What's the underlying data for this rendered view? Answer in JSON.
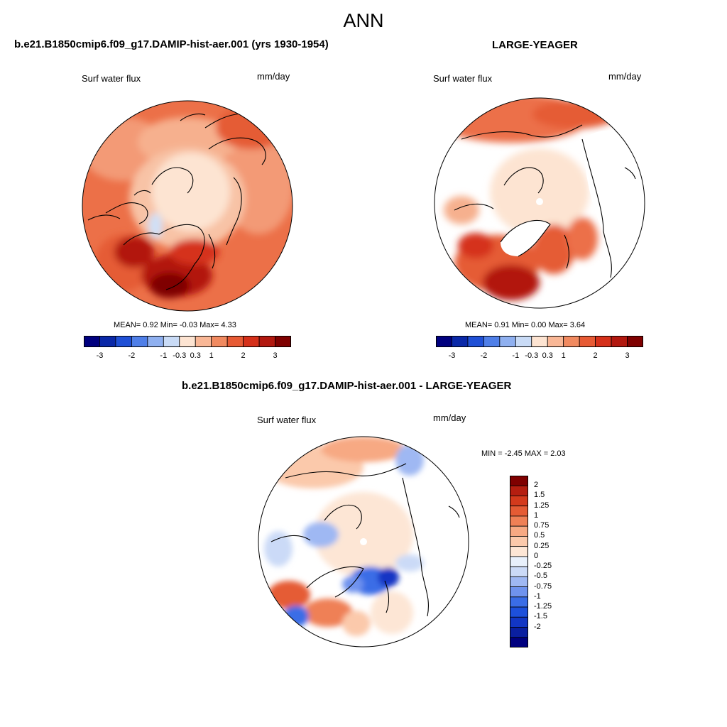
{
  "title": "ANN",
  "colors": {
    "abs_scale": [
      "#00007f",
      "#0a28a8",
      "#1f50d6",
      "#4f7fe8",
      "#8fb0f0",
      "#c9dbf6",
      "#fde4d2",
      "#f9b796",
      "#f18a60",
      "#e75a34",
      "#d5301a",
      "#b2180f",
      "#7f0000"
    ],
    "diff_scale": [
      "#00007f",
      "#0a1fa0",
      "#1236c4",
      "#1d50db",
      "#3a6de6",
      "#6f93ee",
      "#9fb8f3",
      "#cbdaf7",
      "#e8f0fb",
      "#fde6d5",
      "#fbc9ab",
      "#f7a983",
      "#ef8056",
      "#e55b34",
      "#d43a1c",
      "#b51e10",
      "#7f0000"
    ]
  },
  "chart_data": [
    {
      "type": "heatmap",
      "title": "b.e21.B1850cmip6.f09_g17.DAMIP-hist-aer.001 (yrs 1930-1954)",
      "variable": "Surf water flux",
      "units": "mm/day",
      "projection": "polar stereographic (north)",
      "stats": {
        "mean_label": "MEAN=",
        "mean": "0.92",
        "min_label": "Min=",
        "min": "-0.03",
        "max_label": "Max=",
        "max": "4.33"
      },
      "colorbar": {
        "orientation": "horizontal",
        "tick_labels": [
          "-3",
          "-2",
          "-1",
          "-0.3",
          "0.3",
          "1",
          "2",
          "3"
        ]
      }
    },
    {
      "type": "heatmap",
      "title": "LARGE-YEAGER",
      "variable": "Surf water flux",
      "units": "mm/day",
      "projection": "polar stereographic (north)",
      "stats": {
        "mean_label": "MEAN=",
        "mean": "0.91",
        "min_label": "Min=",
        "min": "0.00",
        "max_label": "Max=",
        "max": "3.64"
      },
      "colorbar": {
        "orientation": "horizontal",
        "tick_labels": [
          "-3",
          "-2",
          "-1",
          "-0.3",
          "0.3",
          "1",
          "2",
          "3"
        ]
      }
    },
    {
      "type": "heatmap",
      "title": "b.e21.B1850cmip6.f09_g17.DAMIP-hist-aer.001 - LARGE-YEAGER",
      "variable": "Surf water flux",
      "units": "mm/day",
      "projection": "polar stereographic (north)",
      "stats": {
        "min_label": "MIN =",
        "min": "-2.45",
        "max_label": "MAX =",
        "max": "2.03"
      },
      "colorbar": {
        "orientation": "vertical",
        "tick_labels": [
          "2",
          "1.5",
          "1.25",
          "1",
          "0.75",
          "0.5",
          "0.25",
          "0",
          "-0.25",
          "-0.5",
          "-0.75",
          "-1",
          "-1.25",
          "-1.5",
          "-2"
        ]
      }
    }
  ]
}
